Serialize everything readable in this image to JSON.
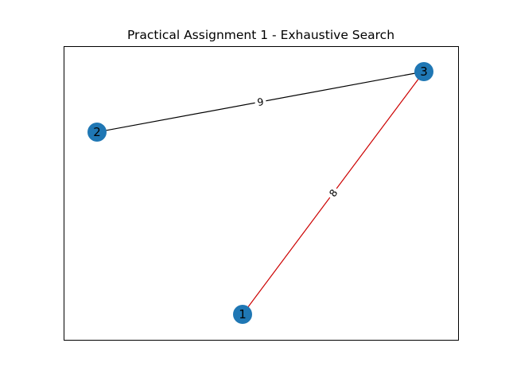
{
  "title": "Practical Assignment 1 - Exhaustive Search",
  "colors": {
    "node_fill": "#1f77b4",
    "edge_default": "#000000",
    "edge_highlight": "#cc0000",
    "frame": "#000000",
    "background": "#ffffff"
  },
  "graph": {
    "nodes": [
      {
        "id": "1",
        "label": "1"
      },
      {
        "id": "2",
        "label": "2"
      },
      {
        "id": "3",
        "label": "3"
      }
    ],
    "edges": [
      {
        "source": "2",
        "target": "3",
        "weight": "9",
        "highlighted": false
      },
      {
        "source": "1",
        "target": "3",
        "weight": "8",
        "highlighted": true
      }
    ]
  }
}
